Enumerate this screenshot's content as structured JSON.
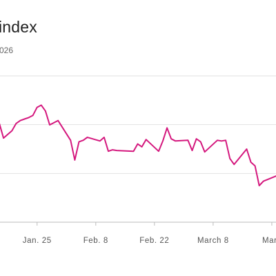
{
  "chart_data": {
    "type": "line",
    "title": "index",
    "subtitle": "026",
    "x_tick_labels": [
      "Jan. 25",
      "Feb. 8",
      "Feb. 22",
      "March 8",
      "Marc"
    ],
    "x_tick_dates": [
      "2026-01-25",
      "2026-02-08",
      "2026-02-22",
      "2026-03-08",
      "2026-03-22"
    ],
    "xlim": [
      "2026-01-15",
      "2026-03-23"
    ],
    "ylim": [
      0,
      100
    ],
    "grid": "horizontal",
    "colors": {
      "line": "#d4177d",
      "grid": "#e2e2e2",
      "baseline": "#bbbbbb"
    },
    "series": [
      {
        "x": [
          "2026-01-15",
          "2026-01-16",
          "2026-01-17",
          "2026-01-19",
          "2026-01-20",
          "2026-01-21",
          "2026-01-22",
          "2026-01-23",
          "2026-01-24",
          "2026-01-25",
          "2026-01-26",
          "2026-01-27",
          "2026-01-28",
          "2026-01-30",
          "2026-02-02",
          "2026-02-03",
          "2026-02-04",
          "2026-02-05",
          "2026-02-06",
          "2026-02-09",
          "2026-02-10",
          "2026-02-11",
          "2026-02-12",
          "2026-02-13",
          "2026-02-17",
          "2026-02-18",
          "2026-02-19",
          "2026-02-20",
          "2026-02-23",
          "2026-02-24",
          "2026-02-25",
          "2026-02-26",
          "2026-02-27",
          "2026-03-02",
          "2026-03-03",
          "2026-03-04",
          "2026-03-05",
          "2026-03-06",
          "2026-03-09",
          "2026-03-10",
          "2026-03-11",
          "2026-03-12",
          "2026-03-13",
          "2026-03-16",
          "2026-03-17",
          "2026-03-18",
          "2026-03-19",
          "2026-03-20",
          "2026-03-23"
        ],
        "y": [
          72.5,
          67.5,
          57.5,
          62.5,
          67.5,
          69.5,
          70.5,
          71.5,
          73.0,
          78.5,
          80.0,
          76.0,
          66.5,
          69.5,
          56.0,
          42.5,
          55.0,
          56.0,
          58.0,
          55.5,
          58.0,
          48.5,
          49.5,
          49.0,
          48.5,
          53.5,
          51.5,
          56.5,
          48.5,
          55.5,
          64.5,
          57.0,
          55.5,
          56.0,
          49.0,
          57.0,
          55.0,
          48.0,
          56.0,
          55.5,
          56.0,
          43.5,
          39.5,
          50.0,
          41.0,
          38.5,
          25.0,
          28.0,
          31.5
        ]
      }
    ]
  }
}
